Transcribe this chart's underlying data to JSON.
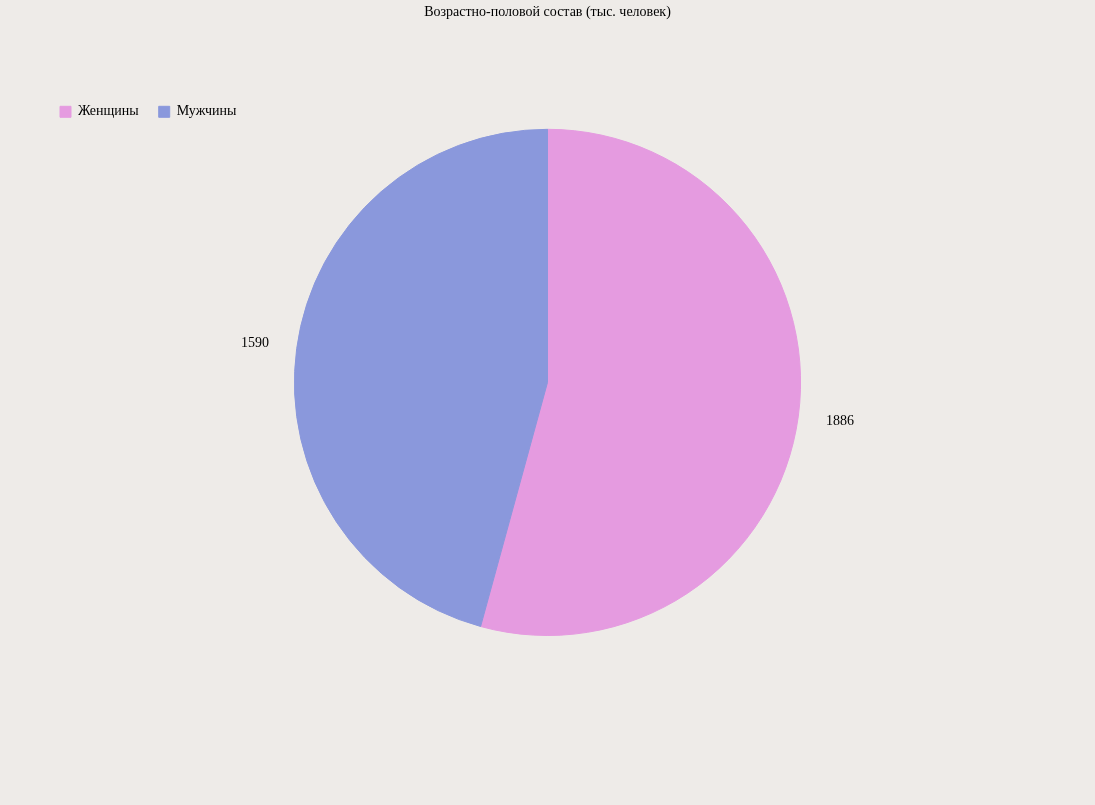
{
  "chart_data": {
    "type": "pie",
    "title": "Возрастно-половой состав (тыс. человек)",
    "categories": [
      "Женщины",
      "Мужчины"
    ],
    "values": [
      1886,
      1590
    ],
    "colors": [
      "#e59be0",
      "#8a98dc"
    ],
    "legend": "top left",
    "data_labels": true
  }
}
